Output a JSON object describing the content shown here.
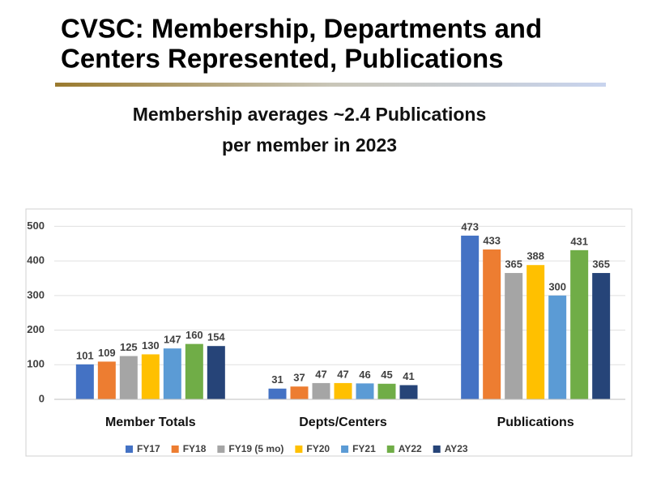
{
  "slide_title": [
    "CVSC: Membership, Departments and",
    "Centers Represented, Publications"
  ],
  "chart_data": {
    "type": "bar",
    "title": [
      "Membership averages ~2.4 Publications",
      "per member in 2023"
    ],
    "categories": [
      "Member Totals",
      "Depts/Centers",
      "Publications"
    ],
    "series": [
      {
        "name": "FY17",
        "color": "#4472c4",
        "values": [
          101,
          31,
          473
        ]
      },
      {
        "name": "FY18",
        "color": "#ed7d31",
        "values": [
          109,
          37,
          433
        ]
      },
      {
        "name": "FY19 (5 mo)",
        "color": "#a5a5a5",
        "values": [
          125,
          47,
          365
        ]
      },
      {
        "name": "FY20",
        "color": "#ffc000",
        "values": [
          130,
          47,
          388
        ]
      },
      {
        "name": "FY21",
        "color": "#5b9bd5",
        "values": [
          147,
          46,
          300
        ]
      },
      {
        "name": "AY22",
        "color": "#70ad47",
        "values": [
          160,
          45,
          431
        ]
      },
      {
        "name": "AY23",
        "color": "#264478",
        "values": [
          154,
          41,
          365
        ]
      }
    ],
    "ylim": [
      0,
      550
    ],
    "yticks": [
      0,
      100,
      200,
      300,
      400,
      500
    ],
    "grid": true,
    "legend": "bottom"
  }
}
